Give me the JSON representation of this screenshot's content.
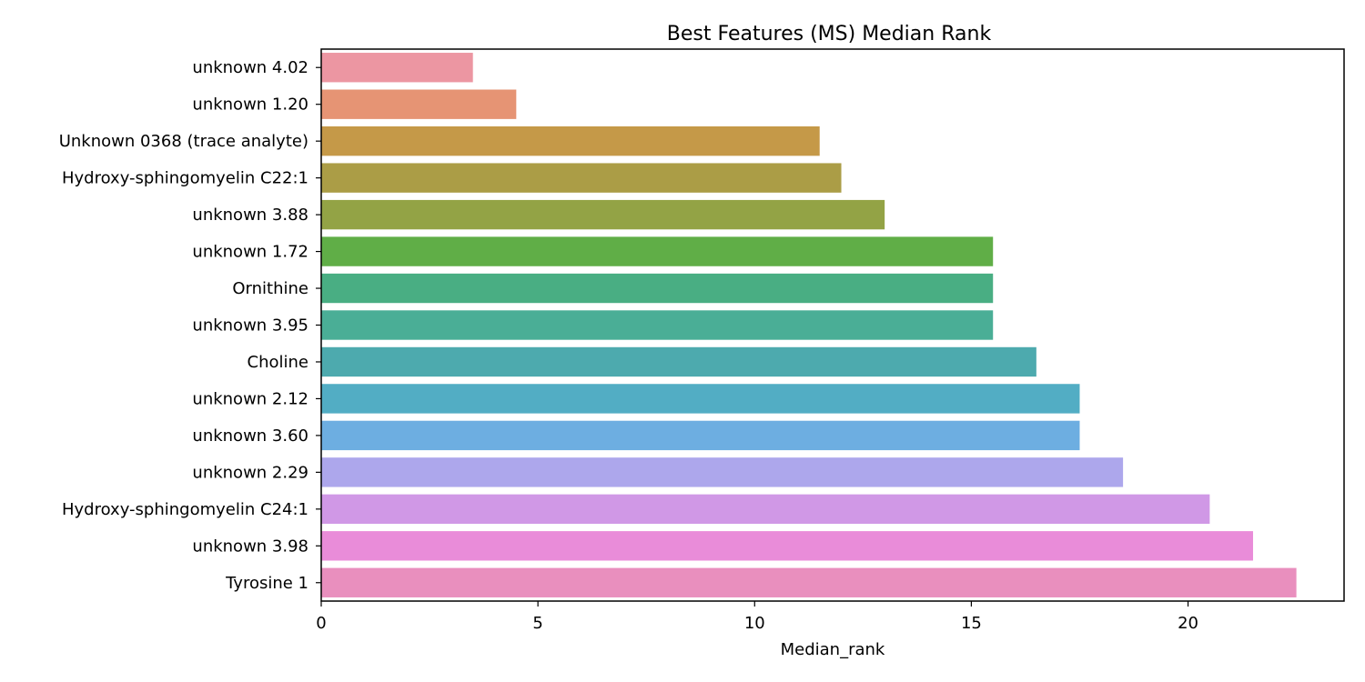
{
  "chart_data": {
    "type": "bar",
    "orientation": "horizontal",
    "title": "Best Features (MS) Median Rank",
    "xlabel": "Median_rank",
    "ylabel": "",
    "xlim": [
      0,
      23.6
    ],
    "xticks": [
      0,
      5,
      10,
      15,
      20
    ],
    "grid": false,
    "categories": [
      "unknown 4.02",
      "unknown 1.20",
      "Unknown 0368 (trace analyte)",
      "Hydroxy-sphingomyelin C22:1",
      "unknown 3.88",
      "unknown 1.72",
      "Ornithine",
      "unknown 3.95",
      "Choline",
      "unknown 2.12",
      "unknown 3.60",
      "unknown 2.29",
      "Hydroxy-sphingomyelin C24:1",
      "unknown 3.98",
      "Tyrosine 1"
    ],
    "values": [
      3.5,
      4.5,
      11.5,
      12.0,
      13.0,
      15.5,
      15.5,
      15.5,
      16.5,
      17.5,
      17.5,
      18.5,
      20.5,
      21.5,
      22.5
    ],
    "colors": [
      "#ec96a2",
      "#e69474",
      "#c59948",
      "#ab9d46",
      "#93a345",
      "#60ae47",
      "#49ae83",
      "#4aae96",
      "#4daaae",
      "#52adc4",
      "#6daee1",
      "#ada7ec",
      "#d098e6",
      "#e98cd9",
      "#e98fbe"
    ]
  }
}
